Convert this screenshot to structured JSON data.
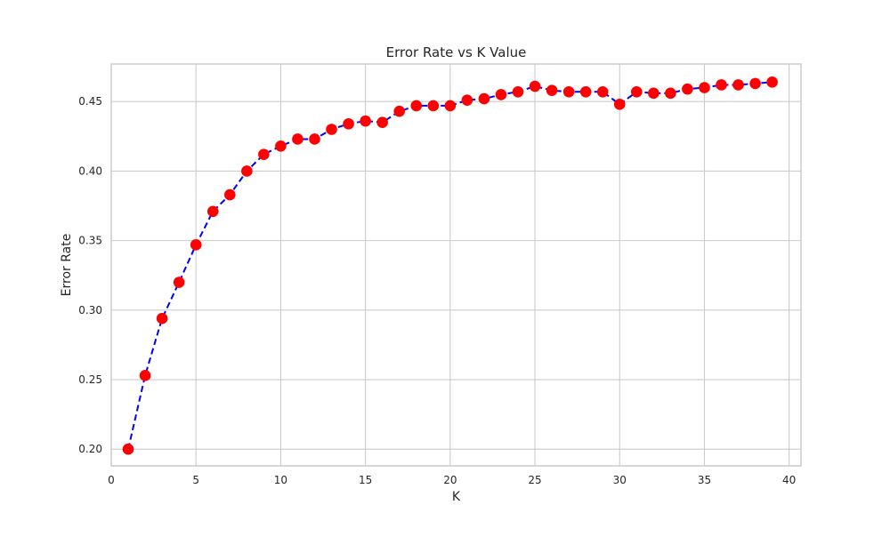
{
  "chart_data": {
    "type": "line",
    "title": "Error Rate vs K Value",
    "xlabel": "K",
    "ylabel": "Error Rate",
    "xlim": [
      0,
      40.7
    ],
    "ylim": [
      0.188,
      0.477
    ],
    "x_ticks": [
      0,
      5,
      10,
      15,
      20,
      25,
      30,
      35,
      40
    ],
    "x_tick_labels": [
      "0",
      "5",
      "10",
      "15",
      "20",
      "25",
      "30",
      "35",
      "40"
    ],
    "y_ticks": [
      0.2,
      0.25,
      0.3,
      0.35,
      0.4,
      0.45
    ],
    "y_tick_labels": [
      "0.20",
      "0.25",
      "0.30",
      "0.35",
      "0.40",
      "0.45"
    ],
    "grid": true,
    "legend": "none",
    "line_style": "dashed",
    "marker": "circle",
    "line_color": "#0000ff",
    "marker_color": "#ff0000",
    "series": [
      {
        "x": [
          1,
          2,
          3,
          4,
          5,
          6,
          7,
          8,
          9,
          10,
          11,
          12,
          13,
          14,
          15,
          16,
          17,
          18,
          19,
          20,
          21,
          22,
          23,
          24,
          25,
          26,
          27,
          28,
          29,
          30,
          31,
          32,
          33,
          34,
          35,
          36,
          37,
          38,
          39
        ],
        "values": [
          0.2,
          0.253,
          0.294,
          0.32,
          0.347,
          0.371,
          0.383,
          0.4,
          0.412,
          0.418,
          0.423,
          0.423,
          0.43,
          0.434,
          0.436,
          0.435,
          0.443,
          0.447,
          0.447,
          0.447,
          0.451,
          0.452,
          0.455,
          0.457,
          0.461,
          0.458,
          0.457,
          0.457,
          0.457,
          0.448,
          0.457,
          0.456,
          0.456,
          0.459,
          0.46,
          0.462,
          0.462,
          0.463,
          0.464
        ]
      }
    ]
  }
}
